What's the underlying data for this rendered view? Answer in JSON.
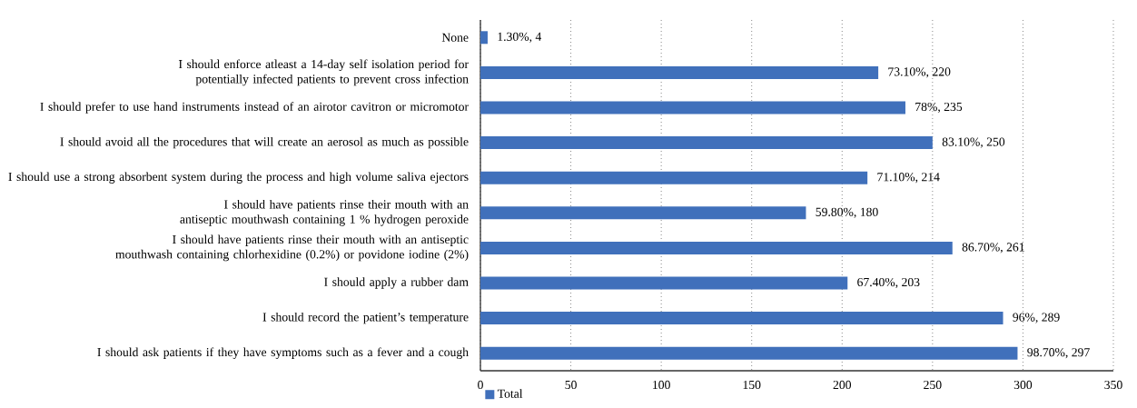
{
  "chart_data": {
    "type": "bar",
    "orientation": "horizontal",
    "categories": [
      "None",
      "I should enforce atleast a 14-day self isolation period for potentially infected patients to prevent cross infection",
      "I should prefer to use hand instruments instead of an airotor cavitron or micromotor",
      "I should avoid all the procedures that will create an aerosol as much as possible",
      "I should use a strong absorbent system during the process and high volume saliva ejectors",
      "I should have patients rinse their mouth with an antiseptic mouthwash containing 1 % hydrogen peroxide",
      "I should have patients rinse their mouth with an antiseptic mouthwash containing chlorhexidine (0.2%) or povidone iodine (2%)",
      "I should apply a rubber dam",
      "I should record the patient’s temperature",
      "I should ask patients if they have symptoms such as a fever and a cough"
    ],
    "series": [
      {
        "name": "Total",
        "color": "#4070bb",
        "values": [
          4,
          220,
          235,
          250,
          214,
          180,
          261,
          203,
          289,
          297
        ],
        "value_labels": [
          "1.30%, 4",
          "73.10%, 220",
          "78%, 235",
          "83.10%, 250",
          "71.10%, 214",
          "59.80%, 180",
          "86.70%, 261",
          "67.40%, 203",
          "96%, 289",
          "98.70%, 297"
        ]
      }
    ],
    "xlim": [
      0,
      350
    ],
    "xticks": [
      0,
      50,
      100,
      150,
      200,
      250,
      300,
      350
    ],
    "grid": "x",
    "legend": "bottom"
  }
}
